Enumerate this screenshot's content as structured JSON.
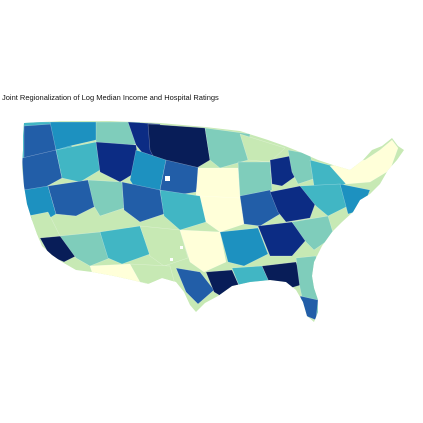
{
  "map": {
    "title": "Joint Regionalization of Log Median Income and Hospital Ratings",
    "palette": [
      "#ffffd9",
      "#c7e9b4",
      "#7fcdbb",
      "#41b6c4",
      "#1d91c0",
      "#225ea8",
      "#0c2c84",
      "#081d58"
    ],
    "background": "#ffffff"
  }
}
